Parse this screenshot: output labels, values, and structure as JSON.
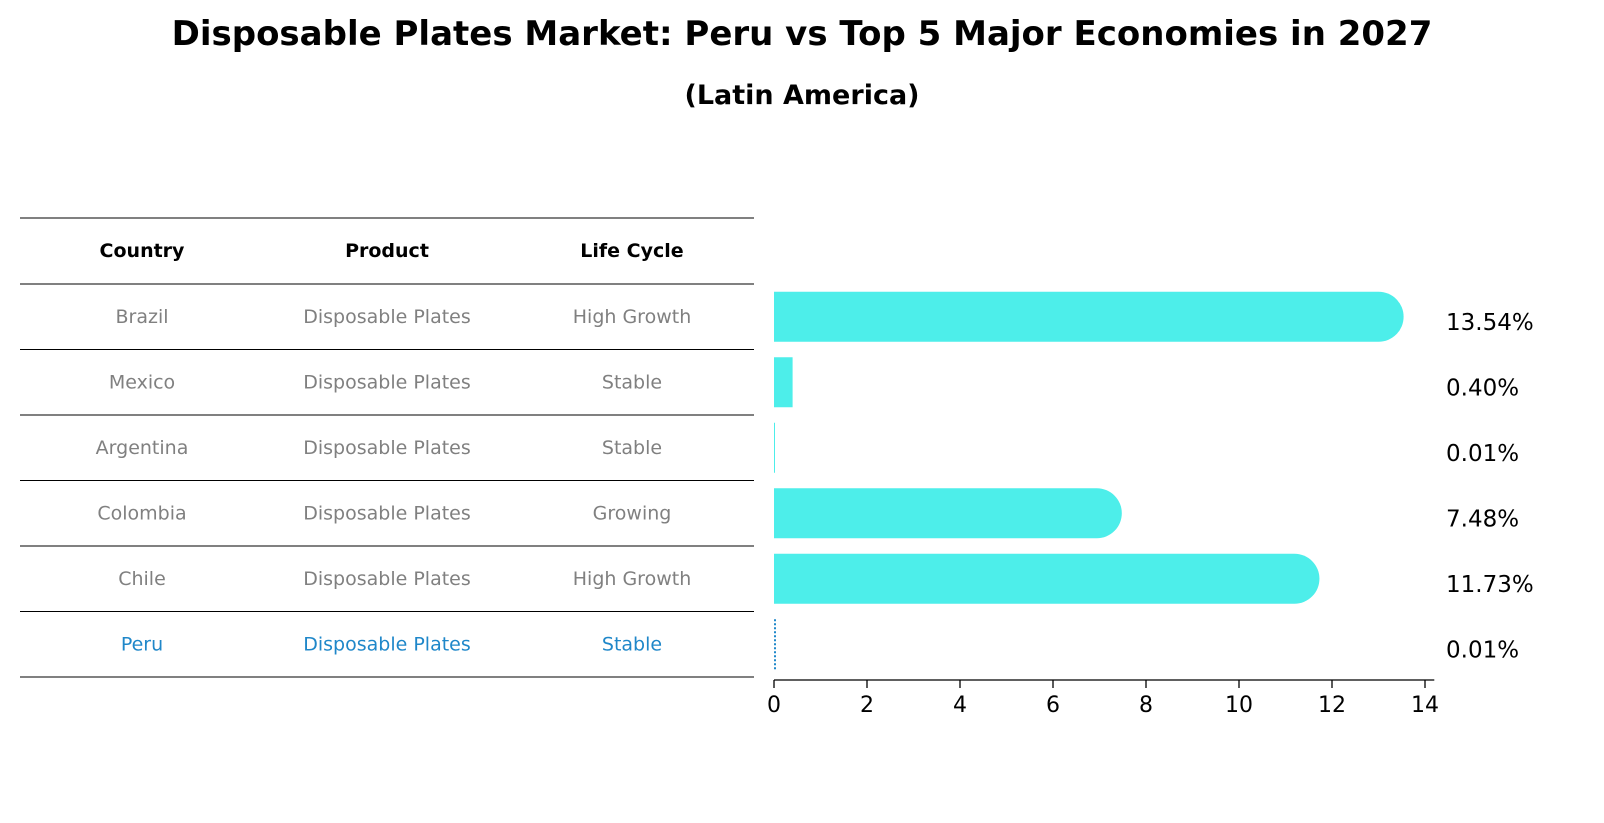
{
  "title": "Disposable Plates Market: Peru vs Top 5 Major Economies in 2027",
  "subtitle": "(Latin America)",
  "table": {
    "headers": [
      "Country",
      "Product",
      "Life Cycle"
    ],
    "rows": [
      {
        "country": "Brazil",
        "product": "Disposable Plates",
        "life_cycle": "High Growth",
        "highlight": false
      },
      {
        "country": "Mexico",
        "product": "Disposable Plates",
        "life_cycle": "Stable",
        "highlight": false
      },
      {
        "country": "Argentina",
        "product": "Disposable Plates",
        "life_cycle": "Stable",
        "highlight": false
      },
      {
        "country": "Colombia",
        "product": "Disposable Plates",
        "life_cycle": "Growing",
        "highlight": false
      },
      {
        "country": "Chile",
        "product": "Disposable Plates",
        "life_cycle": "High Growth",
        "highlight": false
      },
      {
        "country": "Peru",
        "product": "Disposable Plates",
        "life_cycle": "Stable",
        "highlight": true
      }
    ]
  },
  "colors": {
    "bar": "#4DEEEA",
    "highlight": "#1F87C9",
    "muted_text": "#808080",
    "text": "#000000"
  },
  "chart_data": {
    "type": "bar",
    "orientation": "horizontal",
    "categories": [
      "Brazil",
      "Mexico",
      "Argentina",
      "Colombia",
      "Chile",
      "Peru"
    ],
    "values": [
      13.54,
      0.4,
      0.01,
      7.48,
      11.73,
      0.01
    ],
    "data_labels": [
      "13.54%",
      "0.40%",
      "0.01%",
      "7.48%",
      "11.73%",
      "0.01%"
    ],
    "xlim": [
      0,
      14.2
    ],
    "xticks": [
      0,
      2,
      4,
      6,
      8,
      10,
      12,
      14
    ],
    "grid": false,
    "legend": "none"
  }
}
